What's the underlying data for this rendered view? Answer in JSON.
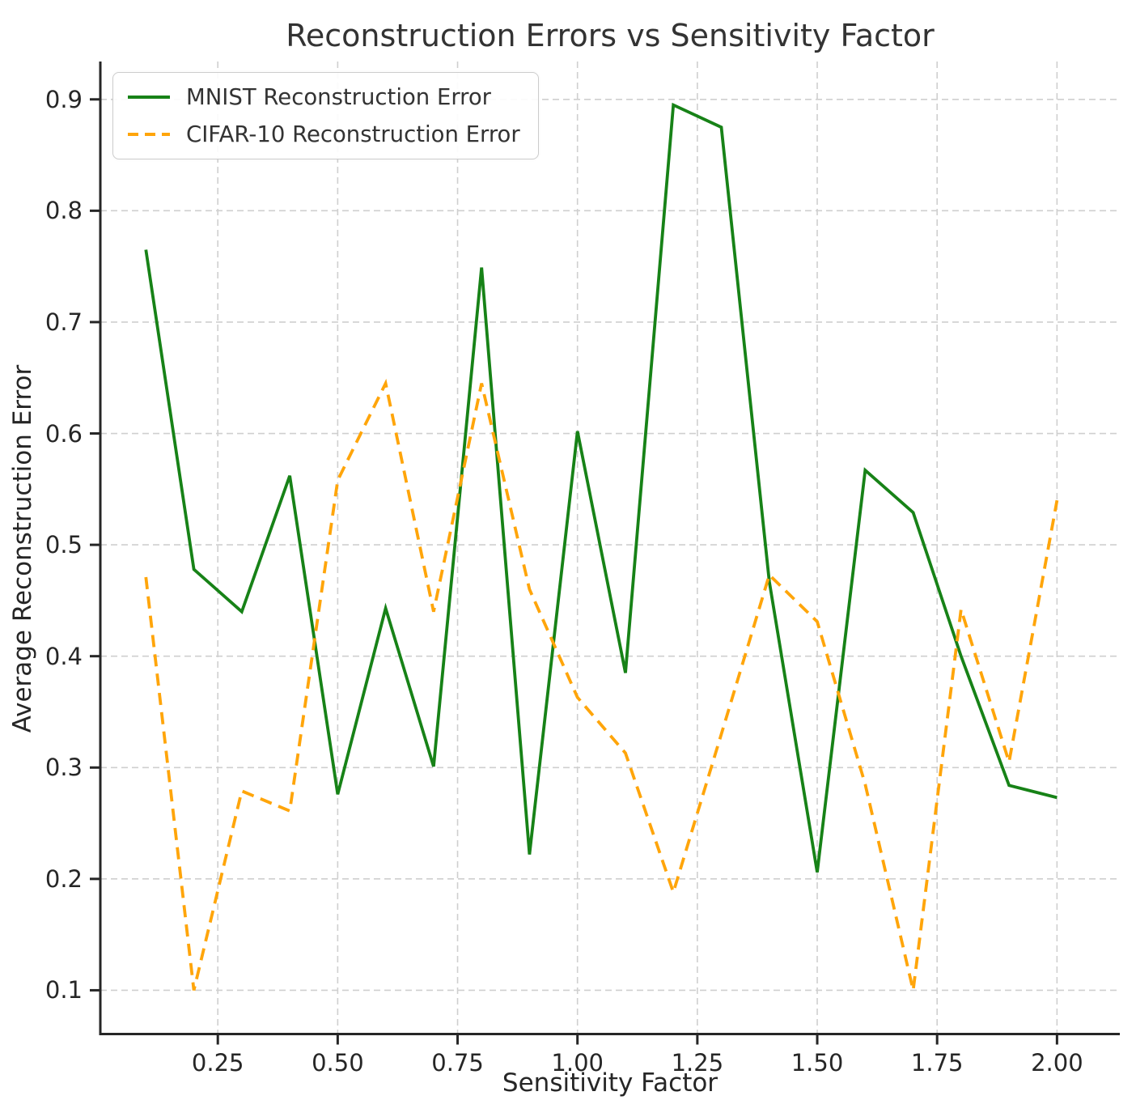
{
  "title": "Reconstruction Errors vs Sensitivity Factor",
  "axes": {
    "xlabel": "Sensitivity Factor",
    "ylabel": "Average Reconstruction Error",
    "x_tick_labels": [
      "0.25",
      "0.50",
      "0.75",
      "1.00",
      "1.25",
      "1.50",
      "1.75",
      "2.00"
    ],
    "x_tick_values": [
      0.25,
      0.5,
      0.75,
      1.0,
      1.25,
      1.5,
      1.75,
      2.0
    ],
    "y_tick_labels": [
      "0.1",
      "0.2",
      "0.3",
      "0.4",
      "0.5",
      "0.6",
      "0.7",
      "0.8",
      "0.9"
    ],
    "y_tick_values": [
      0.1,
      0.2,
      0.3,
      0.4,
      0.5,
      0.6,
      0.7,
      0.8,
      0.9
    ]
  },
  "legend": {
    "items": [
      {
        "label": "MNIST Reconstruction Error",
        "color": "#178217",
        "style": "solid"
      },
      {
        "label": "CIFAR-10 Reconstruction Error",
        "color": "#ffa50a",
        "style": "dashed"
      }
    ]
  },
  "colors": {
    "mnist_green": "#178217",
    "cifar_orange": "#ffa50a",
    "grid_gray": "#cfcfcf",
    "spine_dark": "#262626",
    "text_dark": "#262626"
  },
  "chart_data": {
    "type": "line",
    "title": "Reconstruction Errors vs Sensitivity Factor",
    "xlabel": "Sensitivity Factor",
    "ylabel": "Average Reconstruction Error",
    "x": [
      0.1,
      0.2,
      0.3,
      0.4,
      0.5,
      0.6,
      0.7,
      0.8,
      0.9,
      1.0,
      1.1,
      1.2,
      1.3,
      1.4,
      1.5,
      1.6,
      1.7,
      1.8,
      1.9,
      2.0
    ],
    "series": [
      {
        "name": "MNIST Reconstruction Error",
        "slug": "mnist",
        "color": "#178217",
        "style": "solid",
        "values": [
          0.765,
          0.478,
          0.44,
          0.562,
          0.276,
          0.443,
          0.301,
          0.749,
          0.222,
          0.602,
          0.385,
          0.895,
          0.875,
          0.467,
          0.206,
          0.567,
          0.529,
          0.4,
          0.284,
          0.273
        ]
      },
      {
        "name": "CIFAR-10 Reconstruction Error",
        "slug": "cifar10",
        "color": "#ffa50a",
        "style": "dashed",
        "values": [
          0.471,
          0.1,
          0.279,
          0.261,
          0.558,
          0.645,
          0.44,
          0.645,
          0.46,
          0.363,
          0.313,
          0.188,
          0.33,
          0.473,
          0.431,
          0.285,
          0.1,
          0.442,
          0.305,
          0.54
        ]
      }
    ],
    "xlim": [
      0.005,
      2.131
    ],
    "ylim": [
      0.0607,
      0.934
    ],
    "grid": true,
    "grid_style": "dashed",
    "legend_position": "upper left"
  }
}
